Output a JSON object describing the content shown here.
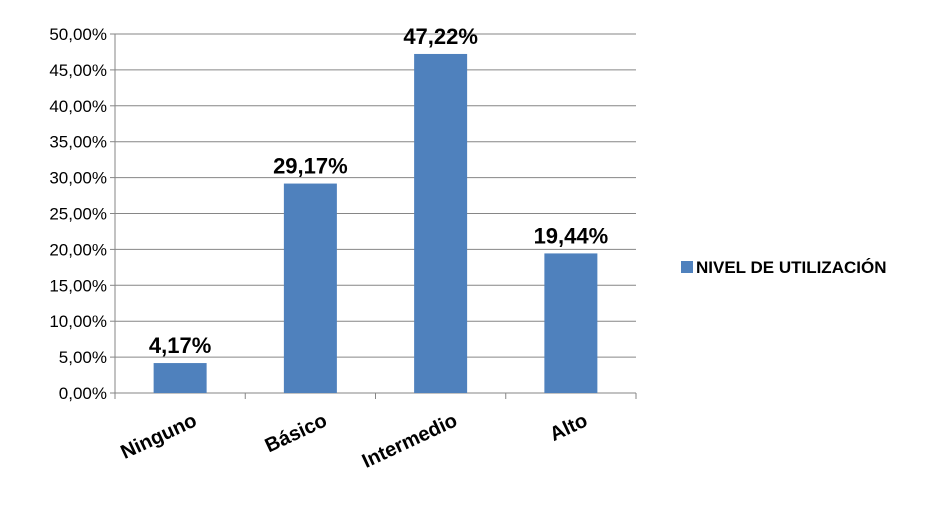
{
  "chart_data": {
    "type": "bar",
    "categories": [
      "Ninguno",
      "Básico",
      "Intermedio",
      "Alto"
    ],
    "series": [
      {
        "name": "NIVEL DE UTILIZACIÓN",
        "values": [
          4.17,
          29.17,
          47.22,
          19.44
        ]
      }
    ],
    "data_labels": [
      "4,17%",
      "29,17%",
      "47,22%",
      "19,44%"
    ],
    "y_tick_labels": [
      "0,00%",
      "5,00%",
      "10,00%",
      "15,00%",
      "20,00%",
      "25,00%",
      "30,00%",
      "35,00%",
      "40,00%",
      "45,00%",
      "50,00%"
    ],
    "ylim": [
      0,
      50
    ],
    "y_tick_step": 5,
    "grid": true,
    "legend": "right",
    "colors": {
      "bar": "#4f81bd",
      "grid": "#868686",
      "axis": "#868686"
    }
  }
}
